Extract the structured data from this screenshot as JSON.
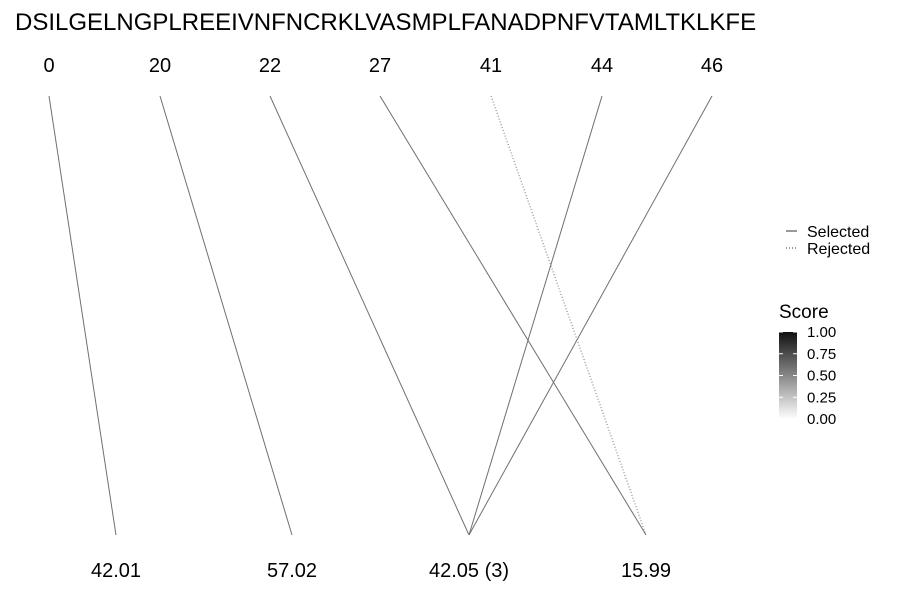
{
  "chart_data": {
    "type": "line",
    "title": "DSILGELNGPLREEIVNFNCRKLVASMPLFANADPNFVTAMLTKLKFE",
    "top_labels": [
      "0",
      "20",
      "22",
      "27",
      "41",
      "44",
      "46"
    ],
    "bottom_labels": [
      "42.01",
      "57.02",
      "42.05 (3)",
      "15.99"
    ],
    "connections": [
      {
        "from": "0",
        "to": "42.01",
        "status": "selected"
      },
      {
        "from": "20",
        "to": "57.02",
        "status": "selected"
      },
      {
        "from": "22",
        "to": "42.05 (3)",
        "status": "selected"
      },
      {
        "from": "27",
        "to": "15.99",
        "status": "selected"
      },
      {
        "from": "41",
        "to": "15.99",
        "status": "rejected"
      },
      {
        "from": "44",
        "to": "42.05 (3)",
        "status": "selected"
      },
      {
        "from": "46",
        "to": "42.05 (3)",
        "status": "selected"
      }
    ],
    "legend_linetype": {
      "items": [
        {
          "label": "Selected",
          "style": "solid"
        },
        {
          "label": "Rejected",
          "style": "dotted"
        }
      ],
      "placement": "right"
    },
    "legend_score": {
      "title": "Score",
      "ticks": [
        "1.00",
        "0.75",
        "0.50",
        "0.25",
        "0.00"
      ],
      "range": [
        0,
        1
      ],
      "color_high": "#111111",
      "color_low": "#ffffff"
    },
    "line_color": "#707070"
  }
}
